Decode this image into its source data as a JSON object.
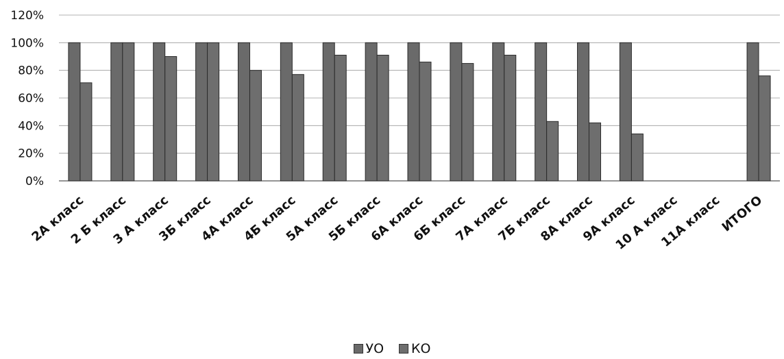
{
  "chart_data": {
    "type": "bar",
    "categories": [
      "2А класс",
      "2 Б класс",
      "3 А класс",
      "3Б класс",
      "4А класс",
      "4Б класс",
      "5А класс",
      "5Б класс",
      "6А класс",
      "6Б класс",
      "7А класс",
      "7Б класс",
      "8А класс",
      "9А класс",
      "10 А класс",
      "11А класс",
      "ИТОГО"
    ],
    "series": [
      {
        "name": "УО",
        "color": "#6a6a6a",
        "values": [
          100,
          100,
          100,
          100,
          100,
          100,
          100,
          100,
          100,
          100,
          100,
          100,
          100,
          100,
          0,
          0,
          100
        ]
      },
      {
        "name": "КО",
        "color": "#6e6e6e",
        "values": [
          71,
          100,
          90,
          100,
          80,
          77,
          91,
          91,
          86,
          85,
          91,
          43,
          42,
          34,
          0,
          0,
          76
        ]
      }
    ],
    "yticks": [
      "0%",
      "20%",
      "40%",
      "60%",
      "80%",
      "100%",
      "120%"
    ],
    "ylim": [
      0,
      120
    ],
    "grid": true,
    "legend_position": "bottom"
  }
}
